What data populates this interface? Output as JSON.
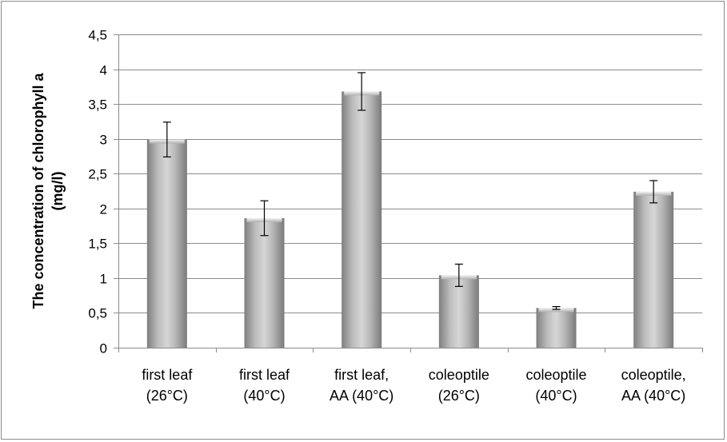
{
  "chart_data": {
    "type": "bar",
    "title": "",
    "xlabel": "",
    "ylabel_lines": [
      "The concentration of chlorophyll a",
      "(mg/l)"
    ],
    "categories": [
      [
        "first leaf",
        "(26°C)"
      ],
      [
        "first leaf",
        "(40°C)"
      ],
      [
        "first leaf,",
        "AA (40°C)"
      ],
      [
        "coleoptile",
        "(26°C)"
      ],
      [
        "coleoptile",
        "(40°C)"
      ],
      [
        "coleoptile,",
        "AA (40°C)"
      ]
    ],
    "values": [
      2.99,
      1.86,
      3.68,
      1.04,
      0.57,
      2.24
    ],
    "errors": [
      0.25,
      0.25,
      0.27,
      0.16,
      0.02,
      0.16
    ],
    "ylim": [
      0,
      4.5
    ],
    "yticks": [
      "0",
      "0,5",
      "1",
      "1,5",
      "2",
      "2,5",
      "3",
      "3,5",
      "4",
      "4,5"
    ],
    "grid": true,
    "legend": "none",
    "bar_color": "#a9a9a9"
  }
}
